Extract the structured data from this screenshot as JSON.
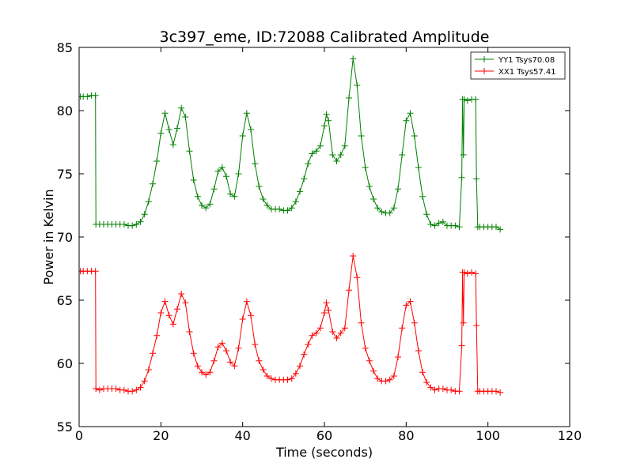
{
  "chart_data": {
    "type": "line",
    "title": "3c397_eme, ID:72088 Calibrated Amplitude",
    "xlabel": "Time (seconds)",
    "ylabel": "Power in Kelvin",
    "xlim": [
      0,
      120
    ],
    "ylim": [
      55,
      85
    ],
    "xticks": [
      0,
      20,
      40,
      60,
      80,
      100,
      120
    ],
    "yticks": [
      55,
      60,
      65,
      70,
      75,
      80,
      85
    ],
    "grid": false,
    "legend_position": "top-right",
    "marker": "+",
    "series": [
      {
        "name": "YY1 Tsys70.08",
        "color": "#008000",
        "points": [
          [
            0.3,
            81.1
          ],
          [
            1,
            81.1
          ],
          [
            2,
            81.1
          ],
          [
            3,
            81.2
          ],
          [
            4,
            81.2
          ],
          [
            4.1,
            71.0
          ],
          [
            5,
            71.0
          ],
          [
            6,
            71.0
          ],
          [
            7,
            71.0
          ],
          [
            8,
            71.0
          ],
          [
            9,
            71.0
          ],
          [
            10,
            71.0
          ],
          [
            11,
            71.0
          ],
          [
            12,
            70.9
          ],
          [
            13,
            70.9
          ],
          [
            14,
            71.0
          ],
          [
            15,
            71.2
          ],
          [
            16,
            71.8
          ],
          [
            17,
            72.8
          ],
          [
            18,
            74.2
          ],
          [
            19,
            76.0
          ],
          [
            20,
            78.2
          ],
          [
            21,
            79.8
          ],
          [
            22,
            78.5
          ],
          [
            23,
            77.3
          ],
          [
            24,
            78.6
          ],
          [
            25,
            80.2
          ],
          [
            26,
            79.5
          ],
          [
            27,
            76.8
          ],
          [
            28,
            74.5
          ],
          [
            29,
            73.2
          ],
          [
            30,
            72.5
          ],
          [
            31,
            72.3
          ],
          [
            32,
            72.6
          ],
          [
            33,
            73.8
          ],
          [
            34,
            75.2
          ],
          [
            35,
            75.5
          ],
          [
            36,
            74.8
          ],
          [
            37,
            73.4
          ],
          [
            38,
            73.2
          ],
          [
            39,
            75.0
          ],
          [
            40,
            78.0
          ],
          [
            41,
            79.8
          ],
          [
            42,
            78.5
          ],
          [
            43,
            75.8
          ],
          [
            44,
            74.0
          ],
          [
            45,
            73.0
          ],
          [
            46,
            72.5
          ],
          [
            47,
            72.2
          ],
          [
            48,
            72.2
          ],
          [
            49,
            72.2
          ],
          [
            50,
            72.1
          ],
          [
            51,
            72.1
          ],
          [
            52,
            72.3
          ],
          [
            53,
            72.8
          ],
          [
            54,
            73.6
          ],
          [
            55,
            74.6
          ],
          [
            56,
            75.8
          ],
          [
            57,
            76.6
          ],
          [
            58,
            76.8
          ],
          [
            59,
            77.2
          ],
          [
            60,
            78.8
          ],
          [
            60.5,
            79.7
          ],
          [
            61,
            79.2
          ],
          [
            62,
            76.5
          ],
          [
            63,
            76.0
          ],
          [
            64,
            76.5
          ],
          [
            65,
            77.2
          ],
          [
            66,
            81.0
          ],
          [
            67,
            84.1
          ],
          [
            68,
            82.0
          ],
          [
            69,
            78.0
          ],
          [
            70,
            75.5
          ],
          [
            71,
            74.0
          ],
          [
            72,
            73.0
          ],
          [
            73,
            72.3
          ],
          [
            74,
            72.0
          ],
          [
            75,
            71.9
          ],
          [
            76,
            71.9
          ],
          [
            77,
            72.3
          ],
          [
            78,
            73.8
          ],
          [
            79,
            76.5
          ],
          [
            80,
            79.2
          ],
          [
            81,
            79.8
          ],
          [
            82,
            78.0
          ],
          [
            83,
            75.5
          ],
          [
            84,
            73.2
          ],
          [
            85,
            71.8
          ],
          [
            86,
            71.0
          ],
          [
            87,
            70.9
          ],
          [
            88,
            71.1
          ],
          [
            89,
            71.2
          ],
          [
            90,
            70.9
          ],
          [
            91,
            70.9
          ],
          [
            92,
            70.9
          ],
          [
            93,
            70.8
          ],
          [
            93.6,
            74.7
          ],
          [
            93.8,
            80.9
          ],
          [
            94,
            76.5
          ],
          [
            94.2,
            80.9
          ],
          [
            95,
            80.8
          ],
          [
            96,
            80.9
          ],
          [
            97,
            80.9
          ],
          [
            97.2,
            74.6
          ],
          [
            97.5,
            70.8
          ],
          [
            98,
            70.8
          ],
          [
            99,
            70.8
          ],
          [
            100,
            70.8
          ],
          [
            101,
            70.8
          ],
          [
            102,
            70.8
          ],
          [
            103,
            70.6
          ]
        ]
      },
      {
        "name": "XX1 Tsys57.41",
        "color": "#ff0000",
        "points": [
          [
            0.3,
            67.3
          ],
          [
            1,
            67.3
          ],
          [
            2,
            67.3
          ],
          [
            3,
            67.3
          ],
          [
            4,
            67.3
          ],
          [
            4.1,
            58.0
          ],
          [
            5,
            57.9
          ],
          [
            6,
            58.0
          ],
          [
            7,
            58.0
          ],
          [
            8,
            58.0
          ],
          [
            9,
            58.0
          ],
          [
            10,
            57.9
          ],
          [
            11,
            57.9
          ],
          [
            12,
            57.8
          ],
          [
            13,
            57.8
          ],
          [
            14,
            57.9
          ],
          [
            15,
            58.1
          ],
          [
            16,
            58.6
          ],
          [
            17,
            59.5
          ],
          [
            18,
            60.8
          ],
          [
            19,
            62.2
          ],
          [
            20,
            64.0
          ],
          [
            21,
            64.9
          ],
          [
            22,
            63.8
          ],
          [
            23,
            63.1
          ],
          [
            24,
            64.3
          ],
          [
            25,
            65.5
          ],
          [
            26,
            64.8
          ],
          [
            27,
            62.5
          ],
          [
            28,
            60.8
          ],
          [
            29,
            59.8
          ],
          [
            30,
            59.3
          ],
          [
            31,
            59.1
          ],
          [
            32,
            59.3
          ],
          [
            33,
            60.2
          ],
          [
            34,
            61.3
          ],
          [
            35,
            61.6
          ],
          [
            36,
            61.0
          ],
          [
            37,
            60.1
          ],
          [
            38,
            59.8
          ],
          [
            39,
            61.2
          ],
          [
            40,
            63.5
          ],
          [
            41,
            64.9
          ],
          [
            42,
            63.8
          ],
          [
            43,
            61.5
          ],
          [
            44,
            60.2
          ],
          [
            45,
            59.5
          ],
          [
            46,
            59.0
          ],
          [
            47,
            58.8
          ],
          [
            48,
            58.7
          ],
          [
            49,
            58.7
          ],
          [
            50,
            58.7
          ],
          [
            51,
            58.7
          ],
          [
            52,
            58.8
          ],
          [
            53,
            59.2
          ],
          [
            54,
            59.8
          ],
          [
            55,
            60.7
          ],
          [
            56,
            61.5
          ],
          [
            57,
            62.2
          ],
          [
            58,
            62.4
          ],
          [
            59,
            62.8
          ],
          [
            60,
            64.0
          ],
          [
            60.5,
            64.8
          ],
          [
            61,
            64.2
          ],
          [
            62,
            62.5
          ],
          [
            63,
            62.0
          ],
          [
            64,
            62.4
          ],
          [
            65,
            62.8
          ],
          [
            66,
            65.8
          ],
          [
            67,
            68.5
          ],
          [
            68,
            66.8
          ],
          [
            69,
            63.2
          ],
          [
            70,
            61.2
          ],
          [
            71,
            60.2
          ],
          [
            72,
            59.4
          ],
          [
            73,
            58.8
          ],
          [
            74,
            58.6
          ],
          [
            75,
            58.6
          ],
          [
            76,
            58.7
          ],
          [
            77,
            59.0
          ],
          [
            78,
            60.5
          ],
          [
            79,
            62.8
          ],
          [
            80,
            64.6
          ],
          [
            81,
            64.9
          ],
          [
            82,
            63.2
          ],
          [
            83,
            61.0
          ],
          [
            84,
            59.3
          ],
          [
            85,
            58.5
          ],
          [
            86,
            58.1
          ],
          [
            87,
            57.9
          ],
          [
            88,
            58.0
          ],
          [
            89,
            58.0
          ],
          [
            90,
            57.9
          ],
          [
            91,
            57.9
          ],
          [
            92,
            57.8
          ],
          [
            93,
            57.8
          ],
          [
            93.6,
            61.4
          ],
          [
            93.8,
            67.2
          ],
          [
            94,
            63.2
          ],
          [
            94.2,
            67.2
          ],
          [
            95,
            67.1
          ],
          [
            96,
            67.2
          ],
          [
            97,
            67.1
          ],
          [
            97.2,
            63.0
          ],
          [
            97.5,
            57.8
          ],
          [
            98,
            57.8
          ],
          [
            99,
            57.8
          ],
          [
            100,
            57.8
          ],
          [
            101,
            57.8
          ],
          [
            102,
            57.8
          ],
          [
            103,
            57.7
          ]
        ]
      }
    ]
  }
}
